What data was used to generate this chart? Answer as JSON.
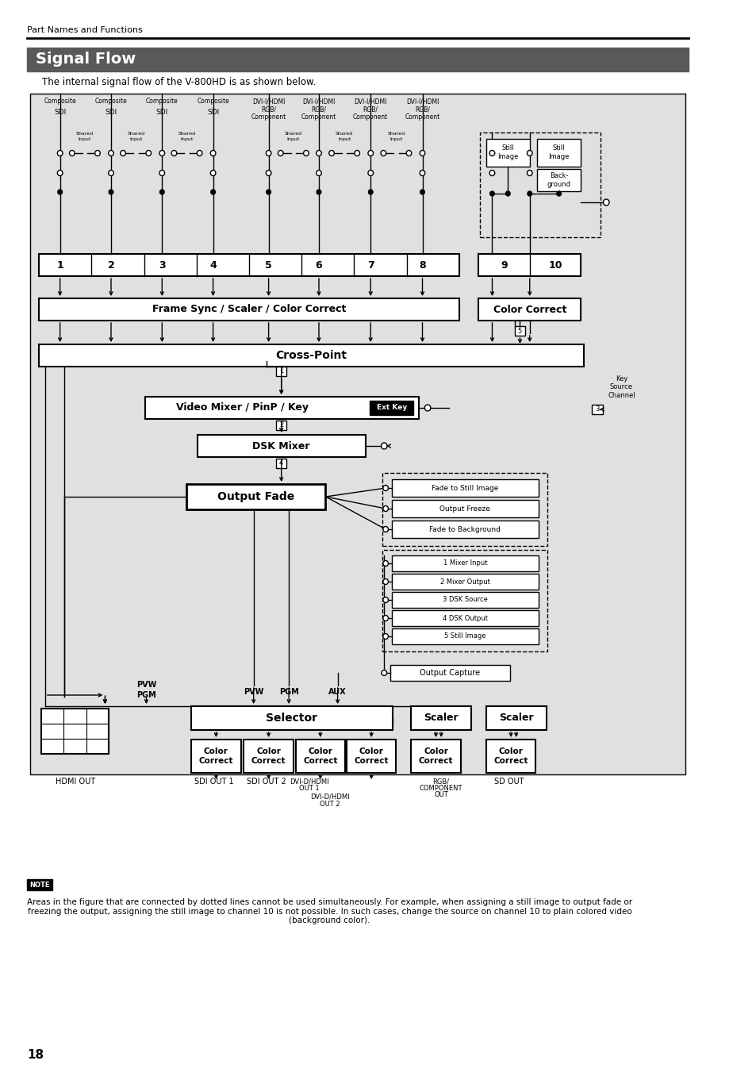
{
  "page_header": "Part Names and Functions",
  "section_title": "Signal Flow",
  "subtitle": "The internal signal flow of the V-800HD is as shown below.",
  "note_label": "NOTE",
  "note_text": "Areas in the figure that are connected by dotted lines cannot be used simultaneously. For example, when assigning a still image to output fade or\nfreezing the output, assigning the still image to channel 10 is not possible. In such cases, change the source on channel 10 to plain colored video\n(background color).",
  "page_number": "18",
  "bg_color": "#ffffff",
  "header_bar_color": "#595959",
  "header_text_color": "#ffffff",
  "diagram_bg": "#e0e0e0",
  "box_fill": "#ffffff"
}
